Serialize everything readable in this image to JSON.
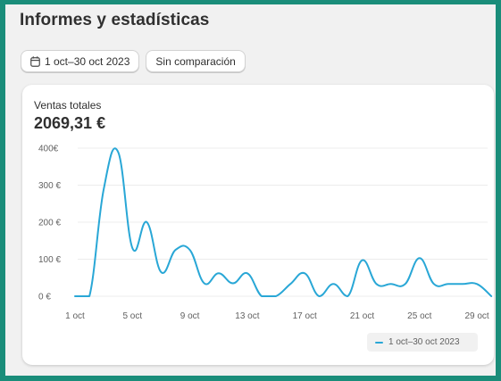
{
  "page": {
    "title": "Informes y estadísticas"
  },
  "toolbar": {
    "date_range_label": "1 oct–30 oct 2023",
    "date_range_icon": "calendar-icon",
    "comparison_label": "Sin comparación"
  },
  "metric": {
    "label": "Ventas totales",
    "value": "2069,31 €"
  },
  "colors": {
    "series": "#29a7d6",
    "grid": "#ececec",
    "background": "#f1f1f1",
    "frame": "#1a8d7a"
  },
  "chart_data": {
    "type": "line",
    "x": [
      "1 oct",
      "2 oct",
      "3 oct",
      "4 oct",
      "5 oct",
      "6 oct",
      "7 oct",
      "8 oct",
      "9 oct",
      "10 oct",
      "11 oct",
      "12 oct",
      "13 oct",
      "14 oct",
      "15 oct",
      "16 oct",
      "17 oct",
      "18 oct",
      "19 oct",
      "20 oct",
      "21 oct",
      "22 oct",
      "23 oct",
      "24 oct",
      "25 oct",
      "26 oct",
      "27 oct",
      "28 oct",
      "29 oct",
      "30 oct"
    ],
    "x_tick_labels": [
      "1 oct",
      "5 oct",
      "9 oct",
      "13 oct",
      "17 oct",
      "21 oct",
      "25 oct",
      "29 oct"
    ],
    "y_tick_labels": [
      "0 €",
      "100 €",
      "200 €",
      "300 €",
      "400€"
    ],
    "y_ticks": [
      0,
      100,
      200,
      300,
      400
    ],
    "ylim": [
      0,
      400
    ],
    "grid": true,
    "legend_position": "bottom-right",
    "series": [
      {
        "name": "1 oct–30 oct 2023",
        "values": [
          0,
          0,
          290,
          390,
          130,
          200,
          65,
          125,
          125,
          35,
          62,
          35,
          62,
          0,
          0,
          33,
          62,
          0,
          33,
          0,
          97,
          33,
          33,
          33,
          103,
          33,
          33,
          33,
          33,
          0
        ]
      }
    ]
  }
}
